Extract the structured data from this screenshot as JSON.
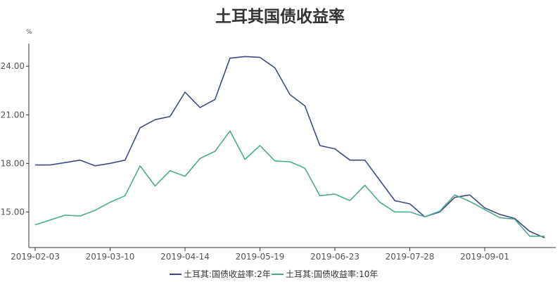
{
  "chart_data": {
    "type": "line",
    "title": "土耳其国债收益率",
    "y_unit": "%",
    "ylim": [
      12.8,
      25.4
    ],
    "y_ticks": [
      "15.00",
      "18.00",
      "21.00",
      "24.00"
    ],
    "y_tick_values": [
      15,
      18,
      21,
      24
    ],
    "x_tick_labels": [
      "2019-02-03",
      "2019-03-10",
      "2019-04-14",
      "2019-05-19",
      "2019-06-23",
      "2019-07-28",
      "2019-09-01"
    ],
    "x_tick_positions": [
      0,
      5,
      10,
      15,
      20,
      25,
      30
    ],
    "x_range": [
      0,
      35
    ],
    "grid": false,
    "legend_position": "bottom",
    "series": [
      {
        "name": "土耳其:国债收益率:2年",
        "color": "#3d4a80",
        "values": [
          17.9,
          17.9,
          18.05,
          18.2,
          17.85,
          18.0,
          18.2,
          20.2,
          20.7,
          20.9,
          22.4,
          21.45,
          21.95,
          24.5,
          24.6,
          24.55,
          23.9,
          22.25,
          21.55,
          19.1,
          18.9,
          18.2,
          18.2,
          16.95,
          15.7,
          15.5,
          14.7,
          15.0,
          15.9,
          16.05,
          15.25,
          14.85,
          14.6,
          13.8,
          13.4
        ]
      },
      {
        "name": "土耳其:国债收益率:10年",
        "color": "#4aaa8c",
        "values": [
          14.2,
          14.5,
          14.8,
          14.75,
          15.1,
          15.6,
          16.0,
          17.85,
          16.6,
          17.55,
          17.2,
          18.3,
          18.75,
          20.0,
          18.25,
          19.1,
          18.15,
          18.1,
          17.7,
          16.0,
          16.1,
          15.7,
          16.65,
          15.6,
          15.0,
          15.0,
          14.7,
          15.05,
          16.05,
          15.65,
          15.15,
          14.65,
          14.55,
          13.5,
          13.5
        ]
      }
    ]
  }
}
